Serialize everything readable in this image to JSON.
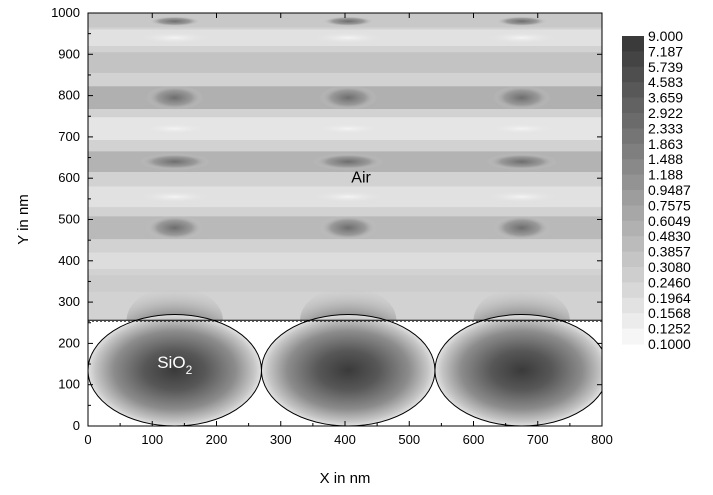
{
  "chart_data": {
    "type": "heatmap",
    "title": "",
    "xlabel": "X in nm",
    "ylabel": "Y in nm",
    "xlim": [
      0,
      800
    ],
    "ylim": [
      0,
      1000
    ],
    "x_ticks": [
      0,
      100,
      200,
      300,
      400,
      500,
      600,
      700,
      800
    ],
    "y_ticks": [
      0,
      100,
      200,
      300,
      400,
      500,
      600,
      700,
      800,
      900,
      1000
    ],
    "x_tick_labels": [
      "0",
      "100",
      "200",
      "300",
      "400",
      "500",
      "600",
      "700",
      "800"
    ],
    "y_tick_labels": [
      "0",
      "100",
      "200",
      "300",
      "400",
      "500",
      "600",
      "700",
      "800",
      "900",
      "1000"
    ],
    "interface_y": 256,
    "period": 270,
    "spheres": [
      {
        "cx": 135,
        "cy": 135,
        "r": 135
      },
      {
        "cx": 405,
        "cy": 135,
        "r": 135
      },
      {
        "cx": 675,
        "cy": 135,
        "r": 135
      }
    ],
    "region_labels": [
      {
        "text": "Air",
        "x": 425,
        "y": 590
      },
      {
        "text": "SiO",
        "sub": "2",
        "x": 135,
        "y": 140
      }
    ],
    "colorbar_levels": [
      "9.000",
      "7.187",
      "5.739",
      "4.583",
      "3.659",
      "2.922",
      "2.333",
      "1.863",
      "1.488",
      "1.188",
      "0.9487",
      "0.7575",
      "0.6049",
      "0.4830",
      "0.3857",
      "0.3080",
      "0.2460",
      "0.1964",
      "0.1568",
      "0.1252",
      "0.1000"
    ],
    "colormap": [
      "#f6f6f6",
      "#3a3a3a"
    ],
    "legend_position": "right"
  }
}
